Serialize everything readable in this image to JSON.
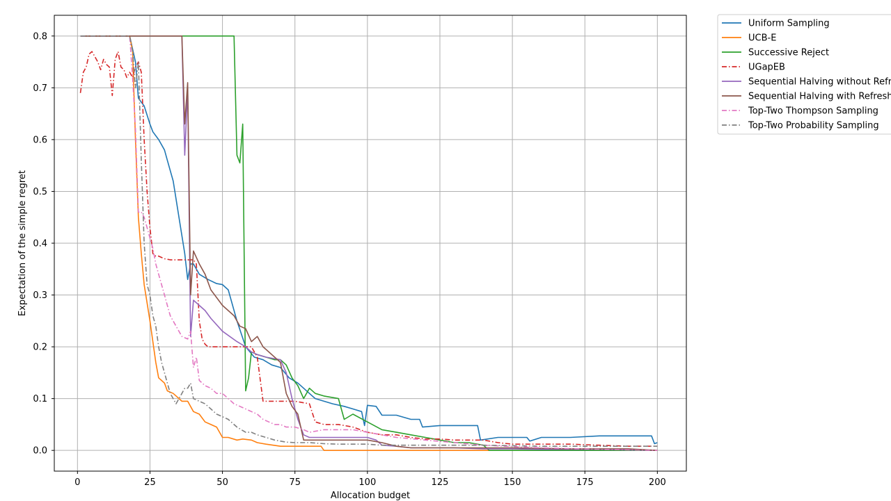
{
  "chart_data": {
    "type": "line",
    "xlabel": "Allocation budget",
    "ylabel": "Expectation of the simple regret",
    "xlim": [
      -8,
      210
    ],
    "ylim": [
      -0.04,
      0.84
    ],
    "xticks": [
      0,
      25,
      50,
      75,
      100,
      125,
      150,
      175,
      200
    ],
    "yticks": [
      0.0,
      0.1,
      0.2,
      0.3,
      0.4,
      0.5,
      0.6,
      0.7,
      0.8
    ],
    "xtick_labels": [
      "0",
      "25",
      "50",
      "75",
      "100",
      "125",
      "150",
      "175",
      "200"
    ],
    "ytick_labels": [
      "0.0",
      "0.1",
      "0.2",
      "0.3",
      "0.4",
      "0.5",
      "0.6",
      "0.7",
      "0.8"
    ],
    "grid": true,
    "legend_position": "outside-top-right",
    "series": [
      {
        "name": "Uniform Sampling",
        "color": "#1f77b4",
        "dash": "solid",
        "x": [
          1,
          18,
          20,
          21,
          23,
          25,
          26,
          28,
          30,
          31,
          33,
          35,
          37,
          38,
          39,
          40,
          42,
          45,
          48,
          50,
          52,
          55,
          58,
          61,
          64,
          67,
          70,
          73,
          76,
          78,
          80,
          82,
          85,
          88,
          92,
          95,
          98,
          99,
          100,
          103,
          105,
          110,
          115,
          118,
          119,
          125,
          130,
          138,
          139,
          145,
          150,
          155,
          156,
          160,
          170,
          180,
          190,
          198,
          199,
          200
        ],
        "y": [
          0.8,
          0.8,
          0.75,
          0.68,
          0.665,
          0.63,
          0.615,
          0.6,
          0.58,
          0.56,
          0.52,
          0.45,
          0.38,
          0.33,
          0.36,
          0.36,
          0.34,
          0.33,
          0.322,
          0.32,
          0.31,
          0.25,
          0.2,
          0.18,
          0.175,
          0.165,
          0.16,
          0.14,
          0.13,
          0.12,
          0.11,
          0.1,
          0.095,
          0.09,
          0.085,
          0.08,
          0.075,
          0.048,
          0.087,
          0.085,
          0.068,
          0.068,
          0.06,
          0.06,
          0.045,
          0.048,
          0.048,
          0.048,
          0.02,
          0.025,
          0.025,
          0.025,
          0.018,
          0.025,
          0.025,
          0.028,
          0.028,
          0.028,
          0.013,
          0.015
        ]
      },
      {
        "name": "UCB-E",
        "color": "#ff7f0e",
        "dash": "solid",
        "x": [
          1,
          18,
          19,
          20,
          21,
          22,
          23,
          25,
          26,
          27,
          28,
          29,
          30,
          31,
          33,
          35,
          36,
          38,
          40,
          42,
          44,
          46,
          48,
          50,
          52,
          55,
          57,
          60,
          62,
          65,
          70,
          75,
          80,
          84,
          85,
          90,
          100,
          120,
          140,
          160,
          200
        ],
        "y": [
          0.8,
          0.8,
          0.77,
          0.6,
          0.45,
          0.38,
          0.32,
          0.25,
          0.21,
          0.17,
          0.14,
          0.135,
          0.13,
          0.115,
          0.11,
          0.1,
          0.095,
          0.095,
          0.075,
          0.07,
          0.055,
          0.05,
          0.045,
          0.025,
          0.025,
          0.02,
          0.022,
          0.02,
          0.015,
          0.012,
          0.008,
          0.008,
          0.008,
          0.008,
          0.0,
          0.0,
          0.0,
          0.0,
          0.0,
          0.0,
          0.0
        ]
      },
      {
        "name": "Successive Reject",
        "color": "#2ca02c",
        "dash": "solid",
        "x": [
          1,
          54,
          55,
          56,
          57,
          58,
          59,
          60,
          62,
          65,
          68,
          70,
          72,
          74,
          76,
          78,
          80,
          82,
          85,
          90,
          92,
          95,
          100,
          105,
          110,
          115,
          120,
          125,
          130,
          135,
          140,
          142,
          145,
          150,
          160,
          200
        ],
        "y": [
          0.8,
          0.8,
          0.57,
          0.555,
          0.63,
          0.115,
          0.14,
          0.19,
          0.185,
          0.18,
          0.175,
          0.175,
          0.165,
          0.14,
          0.125,
          0.1,
          0.12,
          0.11,
          0.105,
          0.1,
          0.06,
          0.07,
          0.055,
          0.04,
          0.035,
          0.03,
          0.025,
          0.02,
          0.015,
          0.015,
          0.01,
          0.0,
          0.0,
          0.0,
          0.0,
          0.0
        ]
      },
      {
        "name": "UGapEB",
        "color": "#d62728",
        "dash": "dashdot",
        "x": [
          1,
          2,
          3,
          4,
          5,
          6,
          7,
          8,
          9,
          10,
          11,
          12,
          13,
          14,
          15,
          16,
          17,
          18,
          19,
          20,
          21,
          22,
          23,
          24,
          25,
          26,
          27,
          28,
          30,
          32,
          35,
          38,
          40,
          41,
          42,
          43,
          44,
          45,
          47,
          50,
          55,
          60,
          62,
          64,
          66,
          70,
          75,
          80,
          82,
          85,
          90,
          95,
          100,
          105,
          110,
          115,
          120,
          125,
          130,
          140,
          145,
          150,
          170,
          180,
          190,
          200
        ],
        "y": [
          0.69,
          0.73,
          0.74,
          0.765,
          0.77,
          0.76,
          0.75,
          0.735,
          0.755,
          0.745,
          0.74,
          0.685,
          0.755,
          0.77,
          0.74,
          0.735,
          0.72,
          0.73,
          0.72,
          0.74,
          0.75,
          0.73,
          0.6,
          0.5,
          0.43,
          0.38,
          0.375,
          0.375,
          0.37,
          0.368,
          0.368,
          0.368,
          0.368,
          0.36,
          0.25,
          0.215,
          0.205,
          0.2,
          0.2,
          0.2,
          0.2,
          0.2,
          0.18,
          0.095,
          0.095,
          0.095,
          0.095,
          0.09,
          0.055,
          0.05,
          0.05,
          0.045,
          0.035,
          0.03,
          0.03,
          0.025,
          0.022,
          0.022,
          0.02,
          0.02,
          0.015,
          0.012,
          0.012,
          0.01,
          0.008,
          0.008
        ]
      },
      {
        "name": "Sequential Halving without Refresh",
        "color": "#9467bd",
        "dash": "solid",
        "x": [
          1,
          36,
          37,
          38,
          39,
          40,
          42,
          44,
          46,
          50,
          55,
          58,
          60,
          62,
          65,
          70,
          72,
          74,
          76,
          78,
          80,
          85,
          90,
          95,
          100,
          103,
          105,
          110,
          115,
          120,
          130,
          140,
          150,
          160,
          180,
          200
        ],
        "y": [
          0.8,
          0.8,
          0.57,
          0.7,
          0.22,
          0.29,
          0.28,
          0.27,
          0.255,
          0.23,
          0.21,
          0.2,
          0.19,
          0.185,
          0.18,
          0.175,
          0.15,
          0.1,
          0.06,
          0.03,
          0.025,
          0.025,
          0.025,
          0.025,
          0.025,
          0.02,
          0.01,
          0.008,
          0.005,
          0.005,
          0.005,
          0.003,
          0.003,
          0.002,
          0.002,
          0.0
        ]
      },
      {
        "name": "Sequential Halving with Refresh",
        "color": "#8c564b",
        "dash": "solid",
        "x": [
          1,
          36,
          37,
          38,
          39,
          40,
          42,
          44,
          46,
          50,
          54,
          56,
          58,
          60,
          62,
          64,
          66,
          70,
          72,
          74,
          76,
          78,
          80,
          85,
          90,
          95,
          100,
          105,
          110,
          115,
          120,
          130,
          140,
          150,
          170,
          190,
          200
        ],
        "y": [
          0.8,
          0.8,
          0.63,
          0.71,
          0.3,
          0.385,
          0.36,
          0.34,
          0.31,
          0.28,
          0.26,
          0.24,
          0.235,
          0.21,
          0.22,
          0.2,
          0.19,
          0.17,
          0.11,
          0.085,
          0.07,
          0.02,
          0.02,
          0.02,
          0.02,
          0.02,
          0.02,
          0.015,
          0.008,
          0.005,
          0.005,
          0.005,
          0.005,
          0.005,
          0.003,
          0.003,
          0.0
        ]
      },
      {
        "name": "Top-Two Thompson Sampling",
        "color": "#e377c2",
        "dash": "dashdot",
        "x": [
          1,
          18,
          19,
          20,
          21,
          22,
          23,
          24,
          25,
          26,
          27,
          28,
          29,
          30,
          31,
          32,
          34,
          36,
          38,
          39,
          40,
          41,
          42,
          44,
          46,
          48,
          50,
          52,
          54,
          56,
          58,
          60,
          62,
          64,
          66,
          68,
          70,
          72,
          75,
          78,
          80,
          85,
          90,
          95,
          100,
          105,
          110,
          120,
          130,
          140,
          160,
          180,
          200
        ],
        "y": [
          0.8,
          0.8,
          0.72,
          0.62,
          0.46,
          0.46,
          0.45,
          0.43,
          0.41,
          0.39,
          0.36,
          0.34,
          0.32,
          0.3,
          0.28,
          0.26,
          0.24,
          0.22,
          0.215,
          0.23,
          0.16,
          0.18,
          0.135,
          0.125,
          0.12,
          0.11,
          0.11,
          0.1,
          0.09,
          0.085,
          0.08,
          0.075,
          0.07,
          0.06,
          0.055,
          0.05,
          0.05,
          0.045,
          0.045,
          0.04,
          0.035,
          0.04,
          0.04,
          0.04,
          0.035,
          0.03,
          0.025,
          0.02,
          0.015,
          0.01,
          0.005,
          0.002,
          0.0
        ]
      },
      {
        "name": "Top-Two Probability Sampling",
        "color": "#7f7f7f",
        "dash": "dashdot",
        "x": [
          1,
          18,
          19,
          20,
          21,
          22,
          23,
          24,
          25,
          26,
          27,
          28,
          29,
          30,
          31,
          32,
          33,
          34,
          35,
          36,
          37,
          38,
          39,
          40,
          42,
          44,
          46,
          48,
          50,
          52,
          55,
          58,
          60,
          62,
          65,
          68,
          70,
          72,
          75,
          80,
          85,
          90,
          95,
          100,
          105,
          110,
          120,
          140,
          160,
          180,
          200
        ],
        "y": [
          0.8,
          0.8,
          0.77,
          0.7,
          0.75,
          0.56,
          0.4,
          0.32,
          0.3,
          0.26,
          0.24,
          0.2,
          0.17,
          0.15,
          0.13,
          0.11,
          0.1,
          0.09,
          0.1,
          0.11,
          0.12,
          0.12,
          0.13,
          0.1,
          0.095,
          0.09,
          0.08,
          0.07,
          0.065,
          0.06,
          0.045,
          0.035,
          0.035,
          0.03,
          0.025,
          0.02,
          0.018,
          0.016,
          0.015,
          0.015,
          0.013,
          0.012,
          0.012,
          0.012,
          0.01,
          0.01,
          0.01,
          0.01,
          0.008,
          0.008,
          0.008
        ]
      }
    ]
  }
}
